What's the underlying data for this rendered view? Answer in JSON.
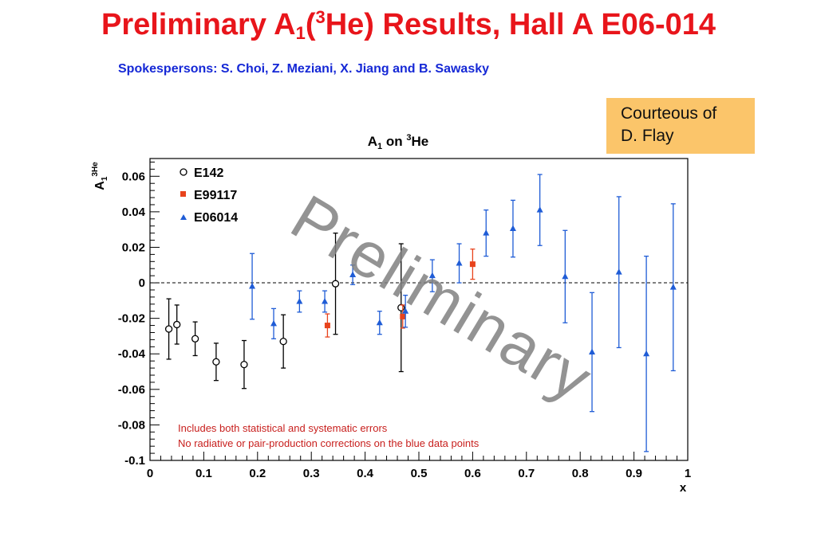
{
  "slide": {
    "title_pre": "Preliminary A",
    "title_sub": "1",
    "title_mid": "(",
    "title_sup": "3",
    "title_post": "He) Results, Hall A E06-014",
    "subtitle": "Spokespersons: S. Choi, Z. Meziani, X. Jiang and  B. Sawasky",
    "credit_line1": "Courteous of",
    "credit_line2": "D. Flay"
  },
  "chart_data": {
    "type": "scatter",
    "title_main": "A",
    "title_sub": "1",
    "title_on": " on ",
    "title_sup": "3",
    "title_end": "He",
    "xlabel": "x",
    "ylabel_main": "A",
    "ylabel_sub": "1",
    "ylabel_sup": "3He",
    "xlim": [
      0,
      1
    ],
    "ylim": [
      -0.1,
      0.07
    ],
    "xticks": [
      0,
      0.1,
      0.2,
      0.3,
      0.4,
      0.5,
      0.6,
      0.7,
      0.8,
      0.9,
      1
    ],
    "xtick_labels": [
      "0",
      "0.1",
      "0.2",
      "0.3",
      "0.4",
      "0.5",
      "0.6",
      "0.7",
      "0.8",
      "0.9",
      "1"
    ],
    "yticks": [
      -0.1,
      -0.08,
      -0.06,
      -0.04,
      -0.02,
      0,
      0.02,
      0.04,
      0.06
    ],
    "ytick_labels": [
      "-0.1",
      "-0.08",
      "-0.06",
      "-0.04",
      "-0.02",
      "0",
      "0.02",
      "0.04",
      "0.06"
    ],
    "zero_line": true,
    "legend_position": "top-left",
    "series": [
      {
        "name": "E142",
        "marker": "open-circle",
        "color": "#000000",
        "points": [
          {
            "x": 0.035,
            "y": -0.026,
            "err": 0.017
          },
          {
            "x": 0.05,
            "y": -0.0235,
            "err": 0.011
          },
          {
            "x": 0.084,
            "y": -0.0315,
            "err": 0.0095
          },
          {
            "x": 0.123,
            "y": -0.0445,
            "err": 0.0105
          },
          {
            "x": 0.175,
            "y": -0.046,
            "err": 0.0135
          },
          {
            "x": 0.248,
            "y": -0.033,
            "err": 0.015
          },
          {
            "x": 0.345,
            "y": -0.0005,
            "err": 0.0285
          },
          {
            "x": 0.467,
            "y": -0.014,
            "err": 0.036
          }
        ]
      },
      {
        "name": "E99117",
        "marker": "filled-square",
        "color": "#e8431c",
        "points": [
          {
            "x": 0.33,
            "y": -0.024,
            "err": 0.0065
          },
          {
            "x": 0.47,
            "y": -0.019,
            "err": 0.0065
          },
          {
            "x": 0.6,
            "y": 0.0105,
            "err": 0.0085
          }
        ]
      },
      {
        "name": "E06014",
        "marker": "filled-triangle",
        "color": "#1f5cd6",
        "points": [
          {
            "x": 0.19,
            "y": -0.002,
            "err": 0.0185
          },
          {
            "x": 0.23,
            "y": -0.023,
            "err": 0.0085
          },
          {
            "x": 0.278,
            "y": -0.0105,
            "err": 0.006
          },
          {
            "x": 0.325,
            "y": -0.0105,
            "err": 0.006
          },
          {
            "x": 0.377,
            "y": 0.0045,
            "err": 0.0055
          },
          {
            "x": 0.427,
            "y": -0.0225,
            "err": 0.0065
          },
          {
            "x": 0.475,
            "y": -0.016,
            "err": 0.009
          },
          {
            "x": 0.525,
            "y": 0.004,
            "err": 0.009
          },
          {
            "x": 0.575,
            "y": 0.011,
            "err": 0.011
          },
          {
            "x": 0.625,
            "y": 0.028,
            "err": 0.013
          },
          {
            "x": 0.675,
            "y": 0.0305,
            "err": 0.016
          },
          {
            "x": 0.725,
            "y": 0.041,
            "err": 0.02
          },
          {
            "x": 0.772,
            "y": 0.0035,
            "err": 0.026
          },
          {
            "x": 0.822,
            "y": -0.039,
            "err": 0.0335
          },
          {
            "x": 0.872,
            "y": 0.006,
            "err": 0.0425
          },
          {
            "x": 0.923,
            "y": -0.04,
            "err": 0.055
          },
          {
            "x": 0.973,
            "y": -0.0025,
            "err": 0.047
          }
        ]
      }
    ],
    "annotations": [
      "Includes both statistical and systematic errors",
      "No radiative or pair-production corrections on the blue data points"
    ],
    "annotation_color": "#c8201e",
    "watermark": "Preliminary",
    "watermark_color": "#808080"
  }
}
